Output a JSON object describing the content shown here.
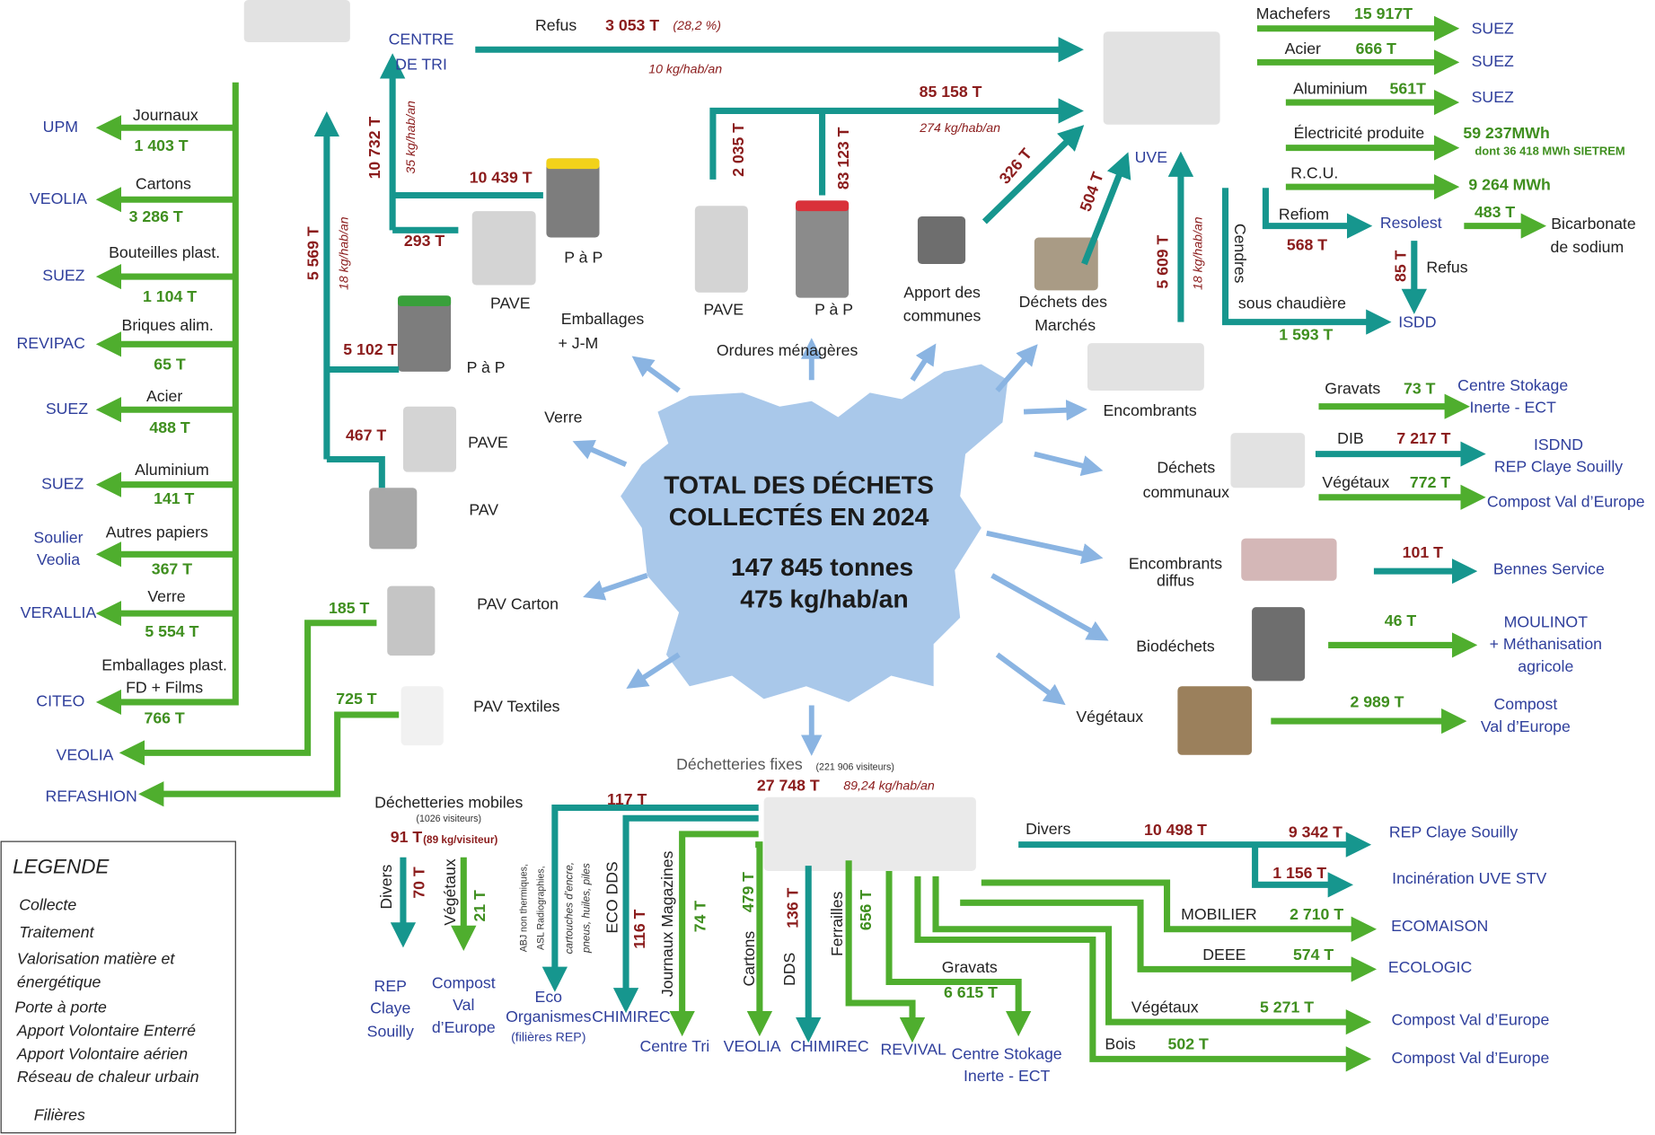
{
  "center": {
    "title1": "TOTAL DES DÉCHETS",
    "title2": "COLLECTÉS EN 2024",
    "tonnage": "147 845 tonnes",
    "ratio": "475 kg/hab/an"
  },
  "legend": {
    "title": "LEGENDE",
    "items": [
      "Collecte",
      "Traitement",
      "Valorisation matière et",
      "énergétique",
      "Porte à porte",
      "Apport Volontaire Enterré",
      "Apport Volontaire aérien",
      "Réseau de chaleur urbain",
      "Filières"
    ]
  },
  "labels": [
    "CENTRE",
    "DE TRI",
    "Refus",
    "3 053 T",
    "(28,2 %)",
    "10 kg/hab/an",
    "Journaux",
    "1 403 T",
    "UPM",
    "Cartons",
    "3 286 T",
    "VEOLIA",
    "Bouteilles plast.",
    "1 104 T",
    "SUEZ",
    "Briques alim.",
    "65 T",
    "REVIPAC",
    "Acier",
    "488 T",
    "SUEZ",
    "Aluminium",
    "141 T",
    "SUEZ",
    "Autres papiers",
    "367 T",
    "Soulier",
    "Veolia",
    "Verre",
    "5 554  T",
    "VERALLIA",
    "Emballages plast.",
    "FD + Films",
    "766 T",
    "CITEO",
    "VEOLIA",
    "REFASHION",
    "5 569 T",
    "18 kg/hab/an",
    "10 732 T",
    "35 kg/hab/an",
    "10 439 T",
    "293 T",
    "P à P",
    "PAVE",
    "Emballages",
    "+ J-M",
    "5 102 T",
    "P à P",
    "Verre",
    "PAVE",
    "467 T",
    "PAV",
    "185 T",
    "PAV Carton",
    "725 T",
    "PAV Textiles",
    "2 035 T",
    "83 123 T",
    "85 158 T",
    "274 kg/hab/an",
    "PAVE",
    "P à P",
    "Ordures ménagères",
    "326 T",
    "504 T",
    "Apport des",
    "communes",
    "Déchets des",
    "Marchés",
    "UVE",
    "5 609 T",
    "18 kg/hab/an",
    "Cendres",
    "sous chaudière",
    "1 593 T",
    "ISDD",
    "Machefers",
    "15 917T",
    "SUEZ",
    "Acier",
    "666 T",
    "SUEZ",
    "Aluminium",
    "561T",
    "SUEZ",
    "Électricité produite",
    "59 237MWh",
    "dont 36 418 MWh SIETREM",
    "R.C.U.",
    "9 264 MWh",
    "Refiom",
    "568 T",
    "Resolest",
    "483 T",
    "Bicarbonate",
    "de sodium",
    "85 T",
    "Refus",
    "Encombrants",
    "Gravats",
    "73 T",
    "Centre Stokage",
    "Inerte - ECT",
    "Déchets",
    "communaux",
    "DIB",
    "7 217 T",
    "ISDND",
    "REP Claye Souilly",
    "Végétaux",
    "772 T",
    "Compost Val d’Europe",
    "Encombrants",
    "diffus",
    "101 T",
    "Bennes Service",
    "Biodéchets",
    "46 T",
    "MOULINOT",
    "+ Méthanisation",
    "agricole",
    "Végétaux",
    "2 989 T",
    "Compost",
    "Val d’Europe",
    "Déchetteries fixes",
    "(221 906 visiteurs)",
    "27 748 T",
    "89,24 kg/hab/an",
    "Déchetteries mobiles",
    "(1026 visiteurs)",
    "91 T",
    "(89 kg/visiteur)",
    "117 T",
    "Divers",
    "70 T",
    "Végétaux",
    "21 T",
    "REP",
    "Claye",
    "Souilly",
    "Compost",
    "Val",
    "d’Europe",
    "ABJ non thermiques,",
    "ASL Radiographies,",
    "cartouches d’encre,",
    "pneus, huiles, piles",
    "Eco",
    "Organismes",
    "(filières REP)",
    "ECO DDS",
    "116 T",
    "CHIMIREC",
    "Journaux Magazines",
    "74 T",
    "Centre Tri",
    "Cartons",
    "479 T",
    "VEOLIA",
    "DDS",
    "136 T",
    "CHIMIREC",
    "Ferrailles",
    "656 T",
    "REVIVAL",
    "Gravats",
    "6 615 T",
    "Centre Stokage",
    "Inerte - ECT",
    "Divers",
    "10 498 T",
    "9 342 T",
    "REP Claye Souilly",
    "1 156 T",
    "Incinération UVE STV",
    "MOBILIER",
    "2 710 T",
    "ECOMAISON",
    "DEEE",
    "574 T",
    "ECOLOGIC",
    "Végétaux",
    "5 271 T",
    "Compost Val d’Europe",
    "Bois",
    "502 T",
    "Compost Val d’Europe"
  ]
}
